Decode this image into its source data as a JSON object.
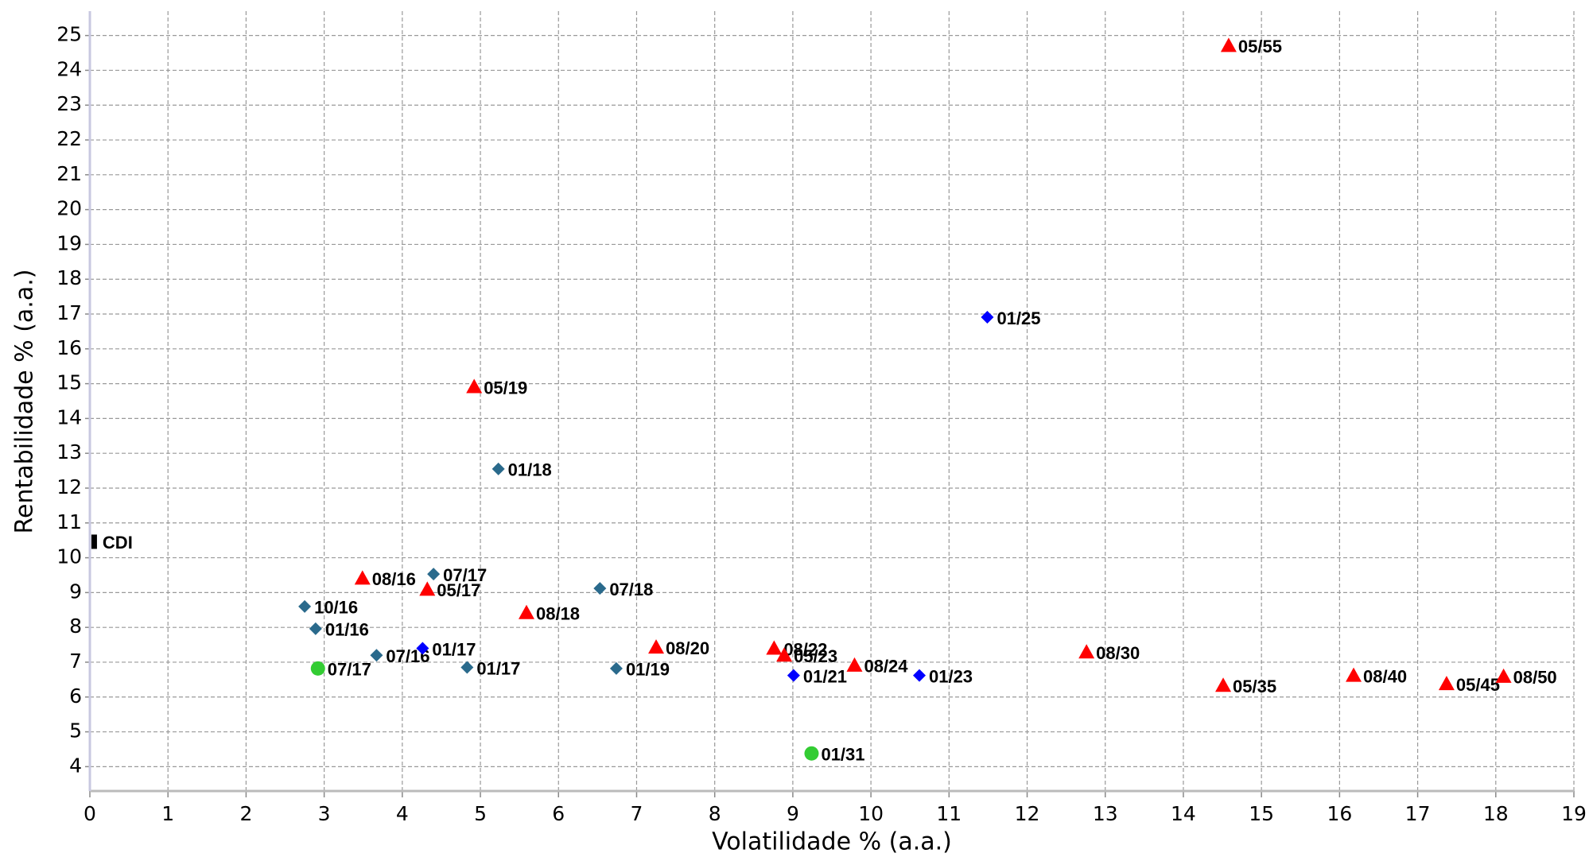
{
  "chart_data": {
    "type": "scatter",
    "xlabel": "Volatilidade % (a.a.)",
    "ylabel": "Rentabilidade % (a.a.)",
    "xlim": [
      0,
      19
    ],
    "ylim": [
      3.3,
      25.7
    ],
    "xticks": [
      0,
      1,
      2,
      3,
      4,
      5,
      6,
      7,
      8,
      9,
      10,
      11,
      12,
      13,
      14,
      15,
      16,
      17,
      18,
      19
    ],
    "yticks": [
      4,
      5,
      6,
      7,
      8,
      9,
      10,
      11,
      12,
      13,
      14,
      15,
      16,
      17,
      18,
      19,
      20,
      21,
      22,
      23,
      24,
      25
    ],
    "grid": true,
    "series": [
      {
        "color": "#2a6a8c",
        "marker": "diamond",
        "labels": [
          "10/16",
          "01/16",
          "07/16",
          "07/17",
          "01/17",
          "01/18",
          "07/18",
          "01/19"
        ],
        "x": [
          2.75,
          2.89,
          3.67,
          4.4,
          4.83,
          5.23,
          6.53,
          6.74
        ],
        "values": [
          8.6,
          7.96,
          7.2,
          9.53,
          6.85,
          12.55,
          9.12,
          6.82
        ]
      },
      {
        "color": "#0000ff",
        "marker": "diamond",
        "labels": [
          "01/17",
          "01/21",
          "01/23",
          "01/25"
        ],
        "x": [
          4.26,
          9.01,
          10.62,
          11.49
        ],
        "values": [
          7.4,
          6.62,
          6.62,
          16.91
        ]
      },
      {
        "color": "#ff0000",
        "marker": "triangle",
        "labels": [
          "08/16",
          "05/17",
          "05/19",
          "08/18",
          "08/20",
          "08/22",
          "05/23",
          "08/24",
          "08/30",
          "05/35",
          "08/40",
          "05/45",
          "08/50",
          "05/55"
        ],
        "x": [
          3.49,
          4.32,
          4.92,
          5.59,
          7.25,
          8.76,
          8.89,
          9.79,
          12.76,
          14.51,
          16.18,
          17.37,
          18.1,
          14.58
        ],
        "values": [
          9.41,
          9.09,
          14.91,
          8.42,
          7.43,
          7.4,
          7.2,
          6.91,
          7.29,
          6.33,
          6.62,
          6.38,
          6.59,
          24.71
        ]
      },
      {
        "color": "#33cc33",
        "marker": "circle",
        "labels": [
          "07/17",
          "01/31"
        ],
        "x": [
          2.92,
          9.24
        ],
        "values": [
          6.82,
          4.38
        ]
      },
      {
        "color": "#000000",
        "marker": "bar",
        "labels": [
          "CDI"
        ],
        "x": [
          0.04
        ],
        "values": [
          10.46
        ]
      }
    ]
  }
}
